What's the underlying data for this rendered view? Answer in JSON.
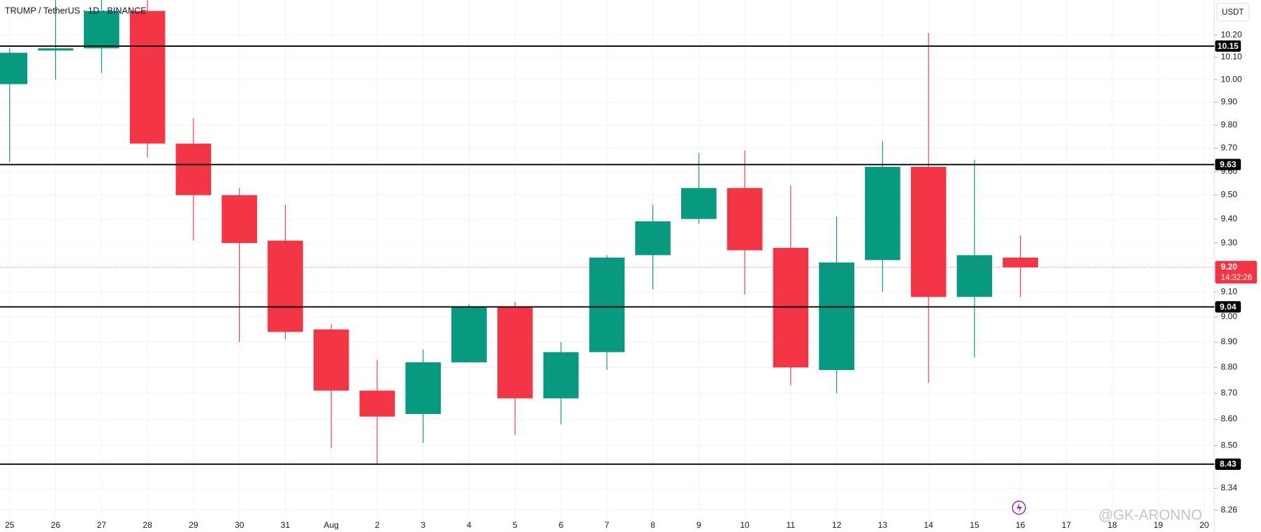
{
  "chart_data": {
    "type": "candlestick",
    "title": "TRUMP / TetherUS · 1D · BINANCE",
    "currency": "USDT",
    "watermark": "@GK-ARONNO",
    "log_scale": true,
    "grid": true,
    "up_color": "#089981",
    "down_color": "#f23645",
    "categories": [
      "25",
      "26",
      "27",
      "28",
      "29",
      "30",
      "31",
      "Aug",
      "2",
      "3",
      "4",
      "5",
      "6",
      "7",
      "8",
      "9",
      "10",
      "11",
      "12",
      "13",
      "14",
      "15",
      "16",
      "17",
      "18",
      "19",
      "20"
    ],
    "open": [
      9.98,
      10.13,
      10.14,
      10.31,
      9.72,
      9.5,
      9.31,
      8.95,
      8.71,
      8.62,
      8.82,
      9.04,
      8.68,
      8.86,
      9.25,
      9.4,
      9.53,
      9.28,
      8.79,
      9.23,
      9.62,
      9.08,
      9.24,
      null,
      null,
      null,
      null
    ],
    "high": [
      10.14,
      10.4,
      10.4,
      10.4,
      9.83,
      9.53,
      9.46,
      8.97,
      8.83,
      8.87,
      9.05,
      9.06,
      8.9,
      9.25,
      9.46,
      9.68,
      9.69,
      9.54,
      9.41,
      9.73,
      10.21,
      9.65,
      9.33,
      null,
      null,
      null,
      null
    ],
    "low": [
      9.64,
      10.0,
      10.03,
      9.66,
      9.31,
      8.9,
      8.91,
      8.49,
      8.43,
      8.51,
      8.82,
      8.54,
      8.58,
      8.79,
      9.11,
      9.38,
      9.09,
      8.73,
      8.7,
      9.1,
      8.74,
      8.84,
      9.08,
      null,
      null,
      null,
      null
    ],
    "close": [
      10.12,
      10.14,
      10.31,
      9.72,
      9.5,
      9.3,
      8.94,
      8.71,
      8.61,
      8.82,
      9.04,
      8.68,
      8.86,
      9.24,
      9.39,
      9.53,
      9.27,
      8.8,
      9.22,
      9.62,
      9.08,
      9.25,
      9.2,
      null,
      null,
      null,
      null
    ],
    "ylim": [
      8.23,
      10.36
    ],
    "yticks": [
      {
        "value": 8.26,
        "label": "8.26"
      },
      {
        "value": 8.34,
        "label": "8.34"
      },
      {
        "value": 8.5,
        "label": "8.50"
      },
      {
        "value": 8.6,
        "label": "8.60"
      },
      {
        "value": 8.7,
        "label": "8.70"
      },
      {
        "value": 8.8,
        "label": "8.80"
      },
      {
        "value": 8.9,
        "label": "8.90"
      },
      {
        "value": 9.0,
        "label": "9.00"
      },
      {
        "value": 9.1,
        "label": "9.10"
      },
      {
        "value": 9.3,
        "label": "9.30"
      },
      {
        "value": 9.4,
        "label": "9.40"
      },
      {
        "value": 9.5,
        "label": "9.50"
      },
      {
        "value": 9.6,
        "label": "9.60"
      },
      {
        "value": 9.7,
        "label": "9.70"
      },
      {
        "value": 9.8,
        "label": "9.80"
      },
      {
        "value": 9.9,
        "label": "9.90"
      },
      {
        "value": 10.0,
        "label": "10.00"
      },
      {
        "value": 10.1,
        "label": "10.10"
      },
      {
        "value": 10.2,
        "label": "10.20"
      }
    ],
    "levels": [
      10.15,
      9.63,
      9.04,
      8.43
    ],
    "last_price": {
      "value": 9.2,
      "label": "9.20"
    },
    "countdown": "14:32:26"
  }
}
